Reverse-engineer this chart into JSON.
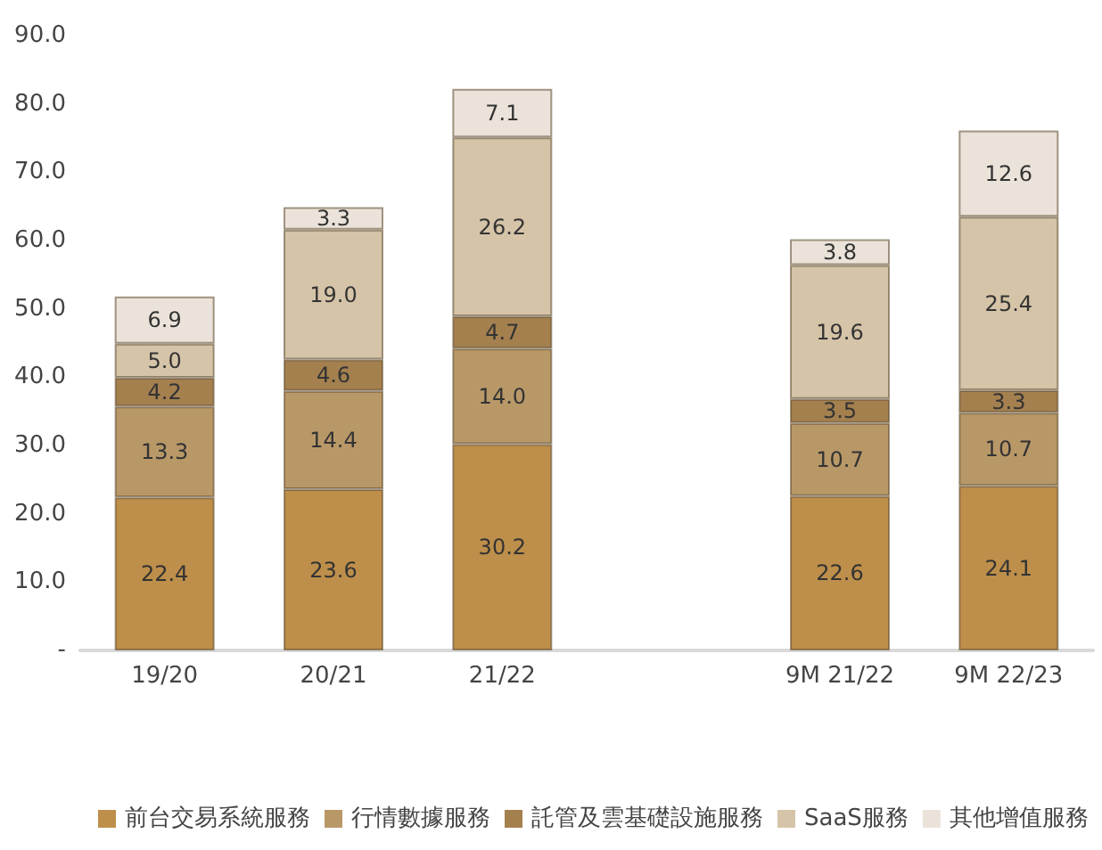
{
  "chart_data": {
    "type": "bar",
    "stacked": true,
    "categories": [
      "19/20",
      "20/21",
      "21/22",
      null,
      "9M 21/22",
      "9M 22/23"
    ],
    "series": [
      {
        "name": "前台交易系統服務",
        "color": "#be8f4a",
        "values": [
          22.4,
          23.6,
          30.2,
          null,
          22.6,
          24.1
        ],
        "value_labels": [
          "22.4",
          "23.6",
          "30.2",
          null,
          "22.6",
          "24.1"
        ]
      },
      {
        "name": "行情數據服務",
        "color": "#b99868",
        "values": [
          13.3,
          14.4,
          14,
          null,
          10.7,
          10.7
        ],
        "value_labels": [
          "13.3",
          "14.4",
          "14.0",
          null,
          "10.7",
          "10.7"
        ]
      },
      {
        "name": "託管及雲基礎設施服務",
        "color": "#a5804f",
        "values": [
          4.2,
          4.6,
          4.7,
          null,
          3.5,
          3.3
        ],
        "value_labels": [
          "4.2",
          "4.6",
          "4.7",
          null,
          "3.5",
          "3.3"
        ]
      },
      {
        "name": "SaaS服務",
        "color": "#d6c4a8",
        "values": [
          5,
          19,
          26.2,
          null,
          19.6,
          25.4
        ],
        "value_labels": [
          "5.0",
          "19.0",
          "26.2",
          null,
          "19.6",
          "25.4"
        ]
      },
      {
        "name": "其他增值服務",
        "color": "#ebe3d9",
        "values": [
          6.9,
          3.3,
          7.1,
          null,
          3.8,
          12.6
        ],
        "value_labels": [
          "6.9",
          "3.3",
          "7.1",
          null,
          "3.8",
          "12.6"
        ]
      }
    ],
    "ylim": [
      0,
      90
    ],
    "yticks": [
      {
        "value": 0,
        "label": "-"
      },
      {
        "value": 10,
        "label": "10.0"
      },
      {
        "value": 20,
        "label": "20.0"
      },
      {
        "value": 30,
        "label": "30.0"
      },
      {
        "value": 40,
        "label": "40.0"
      },
      {
        "value": 50,
        "label": "50.0"
      },
      {
        "value": 60,
        "label": "60.0"
      },
      {
        "value": 70,
        "label": "70.0"
      },
      {
        "value": 80,
        "label": "80.0"
      },
      {
        "value": 90,
        "label": "90.0"
      }
    ],
    "grid": false,
    "legend": "bottom"
  }
}
